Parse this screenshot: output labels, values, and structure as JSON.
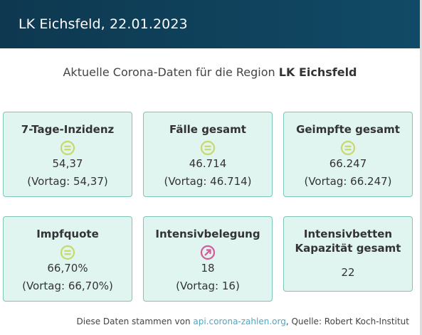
{
  "header": {
    "title": "LK Eichsfeld, 22.01.2023"
  },
  "subtitle": {
    "prefix": "Aktuelle Corona-Daten für die Region",
    "region": "LK Eichsfeld"
  },
  "colors": {
    "header_bg": "#0e3850",
    "card_bg": "#e0f5f0",
    "card_border": "#7fc4b6",
    "trend_equal": "#c8d96a",
    "trend_up": "#d45a9a",
    "link": "#4ba8c7"
  },
  "cards": [
    {
      "title": "7-Tage-Inzidenz",
      "icon": "trend-equal-icon",
      "value": "54,37",
      "previous": "(Vortag: 54,37)"
    },
    {
      "title": "Fälle gesamt",
      "icon": "trend-equal-icon",
      "value": "46.714",
      "previous": "(Vortag: 46.714)"
    },
    {
      "title": "Geimpfte gesamt",
      "icon": "trend-equal-icon",
      "value": "66.247",
      "previous": "(Vortag: 66.247)"
    },
    {
      "title": "Impfquote",
      "icon": "trend-equal-icon",
      "value": "66,70%",
      "previous": "(Vortag: 66,70%)"
    },
    {
      "title": "Intensivbelegung",
      "icon": "trend-up-icon",
      "value": "18",
      "previous": "(Vortag: 16)"
    },
    {
      "title_line1": "Intensivbetten",
      "title_line2": "Kapazität gesamt",
      "value": "22"
    }
  ],
  "footer": {
    "prefix": "Diese Daten stammen von",
    "link_text": "api.corona-zahlen.org",
    "suffix": ", Quelle: Robert Koch-Institut"
  }
}
